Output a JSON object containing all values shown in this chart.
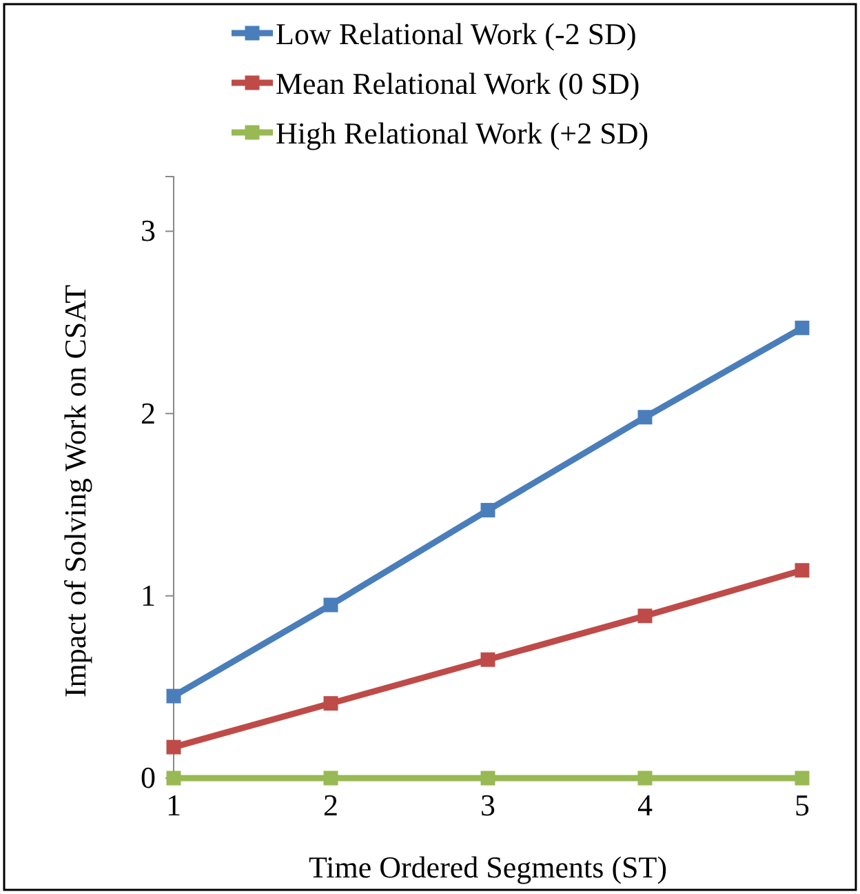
{
  "chart_data": {
    "type": "line",
    "xlabel": "Time Ordered Segments (ST)",
    "ylabel": "Impact of Solving Work on CSAT",
    "x": [
      1,
      2,
      3,
      4,
      5
    ],
    "xlim": [
      1,
      5
    ],
    "xticks": [
      1,
      2,
      3,
      4,
      5
    ],
    "ylim": [
      0,
      3.3
    ],
    "yticks": [
      0,
      1,
      2,
      3
    ],
    "grid": false,
    "legend": "top",
    "marker": "square",
    "line_style": "solid",
    "series": [
      {
        "name": "Low Relational Work (-2 SD)",
        "color": "#4a7ebb",
        "values": [
          0.45,
          0.95,
          1.47,
          1.98,
          2.47
        ]
      },
      {
        "name": "Mean Relational Work (0 SD)",
        "color": "#be4b48",
        "values": [
          0.17,
          0.41,
          0.65,
          0.89,
          1.14
        ]
      },
      {
        "name": "High Relational Work (+2 SD)",
        "color": "#98b954",
        "values": [
          0,
          0,
          0,
          0,
          0
        ]
      }
    ]
  }
}
